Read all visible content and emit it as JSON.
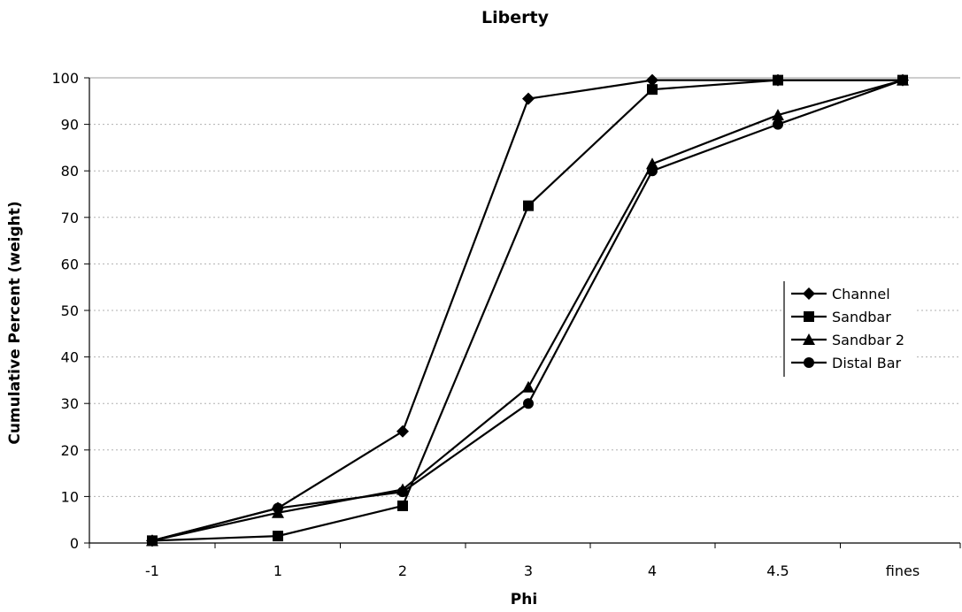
{
  "chart_data": {
    "type": "line",
    "title": "Liberty",
    "xlabel": "Phi",
    "ylabel": "Cumulative Percent (weight)",
    "categories": [
      "-1",
      "1",
      "2",
      "3",
      "4",
      "4.5",
      "fines"
    ],
    "ylim": [
      0,
      100
    ],
    "yticks": [
      0,
      10,
      20,
      30,
      40,
      50,
      60,
      70,
      80,
      90,
      100
    ],
    "grid": true,
    "legend_position": "right",
    "series": [
      {
        "name": "Channel",
        "marker": "diamond",
        "values": [
          0.5,
          7.5,
          24,
          95.5,
          99.5,
          99.5,
          99.5
        ]
      },
      {
        "name": "Sandbar",
        "marker": "square",
        "values": [
          0.5,
          1.5,
          8,
          72.5,
          97.5,
          99.5,
          99.5
        ]
      },
      {
        "name": "Sandbar 2",
        "marker": "triangle",
        "values": [
          0.5,
          6.5,
          11.5,
          33.5,
          81.5,
          92,
          99.5
        ]
      },
      {
        "name": "Distal Bar",
        "marker": "circle",
        "values": [
          0.5,
          7.5,
          11,
          30,
          80,
          90,
          99.5
        ]
      }
    ],
    "colors": {
      "line": "#000000",
      "grid": "#b0b0b0"
    }
  }
}
